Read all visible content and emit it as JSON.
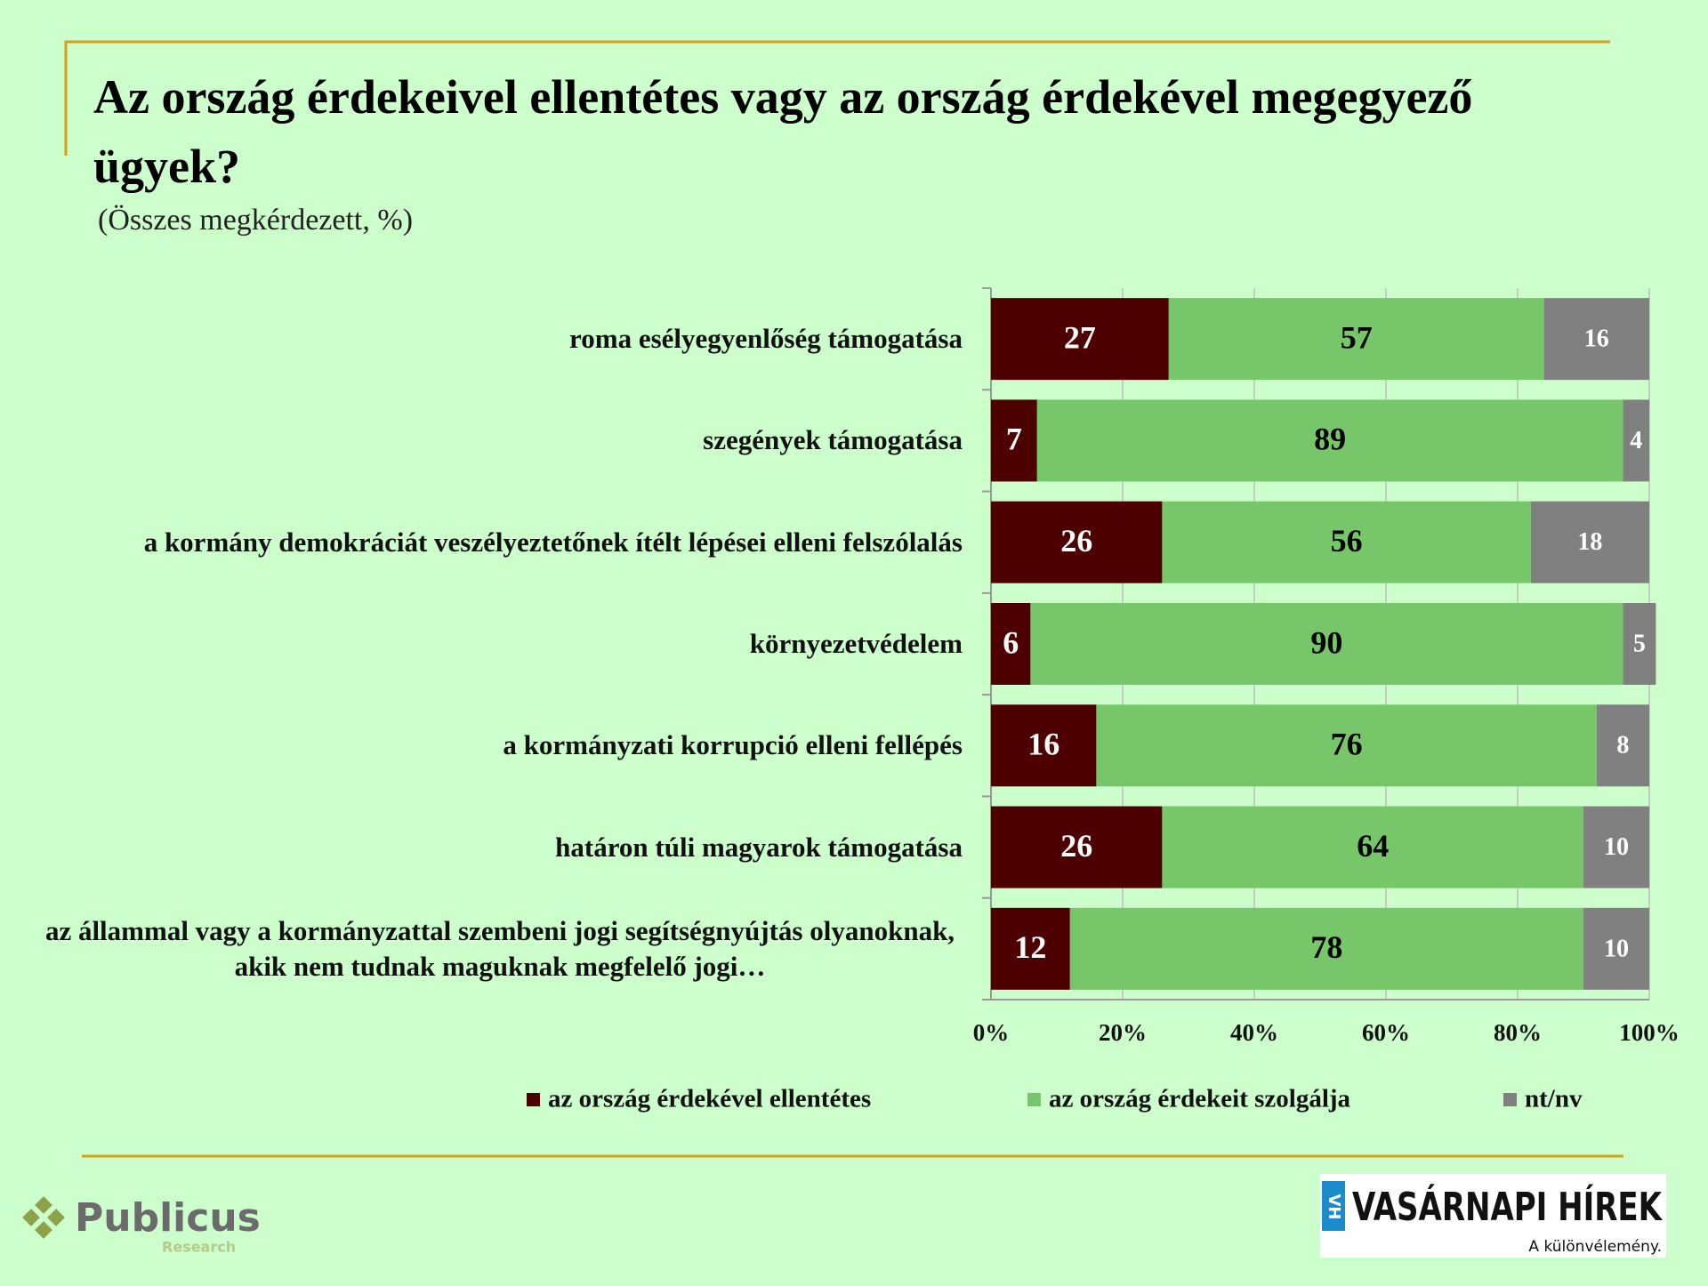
{
  "chart_data": {
    "type": "stacked_barh",
    "title": "Az ország érdekeivel ellentétes vagy az ország érdekével megegyező ügyek?",
    "subtitle": "(Összes megkérdezett, %)",
    "categories": [
      "roma esélyegyenlőség támogatása",
      "szegények támogatása",
      "a kormány demokráciát veszélyeztetőnek ítélt lépései elleni felszólalás",
      "környezetvédelem",
      "a kormányzati korrupció elleni fellépés",
      "határon túli magyarok támogatása",
      "az állammal vagy a kormányzattal szembeni jogi segítségnyújtás olyanoknak, akik nem tudnak maguknak megfelelő jogi…"
    ],
    "series": [
      {
        "name": "az ország érdekével ellentétes",
        "color": "#4d0000",
        "label_color": "#ffffff",
        "values": [
          27,
          7,
          26,
          6,
          16,
          26,
          12
        ]
      },
      {
        "name": "az ország érdekeit szolgálja",
        "color": "#77c66a",
        "label_color": "#000000",
        "values": [
          57,
          89,
          56,
          90,
          76,
          64,
          78
        ]
      },
      {
        "name": "nt/nv",
        "color": "#808080",
        "label_color": "#ffffff",
        "values": [
          16,
          4,
          18,
          5,
          8,
          10,
          10
        ]
      }
    ],
    "xlim": [
      0,
      100
    ],
    "xticks": [
      {
        "value": 0,
        "label": "0%"
      },
      {
        "value": 20,
        "label": "20%"
      },
      {
        "value": 40,
        "label": "40%"
      },
      {
        "value": 60,
        "label": "60%"
      },
      {
        "value": 80,
        "label": "80%"
      },
      {
        "value": 100,
        "label": "100%"
      }
    ],
    "grid": true,
    "legend": "bottom"
  },
  "footer": {
    "left_logo": "Publicus",
    "left_logo_sub": "Research",
    "right_badge": "VH",
    "right_logo": "VASÁRNAPI HÍREK",
    "right_logo_tagline": "A különvélemény."
  }
}
